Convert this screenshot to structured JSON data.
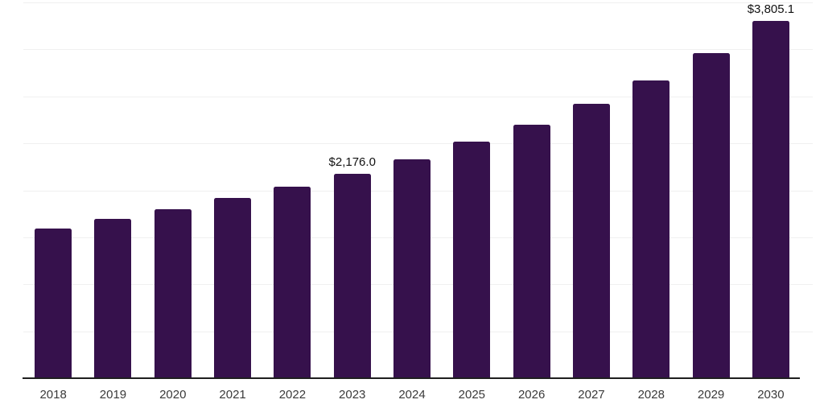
{
  "chart_data": {
    "type": "bar",
    "title": "",
    "xlabel": "",
    "ylabel": "",
    "categories": [
      "2018",
      "2019",
      "2020",
      "2021",
      "2022",
      "2023",
      "2024",
      "2025",
      "2026",
      "2027",
      "2028",
      "2029",
      "2030"
    ],
    "values": [
      1590,
      1700,
      1800,
      1918,
      2040,
      2176.0,
      2330,
      2515,
      2700,
      2920,
      3170,
      3460,
      3805.1
    ],
    "data_labels": [
      "",
      "",
      "",
      "",
      "",
      "$2,176.0",
      "",
      "",
      "",
      "",
      "",
      "",
      "$3,805.1"
    ],
    "ylim": [
      0,
      4000
    ],
    "grid": true,
    "gridline_intervals": 8,
    "legend": "none",
    "colors": {
      "bar": "#36114C",
      "gridline": "#f0f0f0",
      "axis_line": "#1f1f1f",
      "tick_label": "#3a3a3a",
      "data_label": "#111111",
      "background": "#ffffff"
    }
  }
}
